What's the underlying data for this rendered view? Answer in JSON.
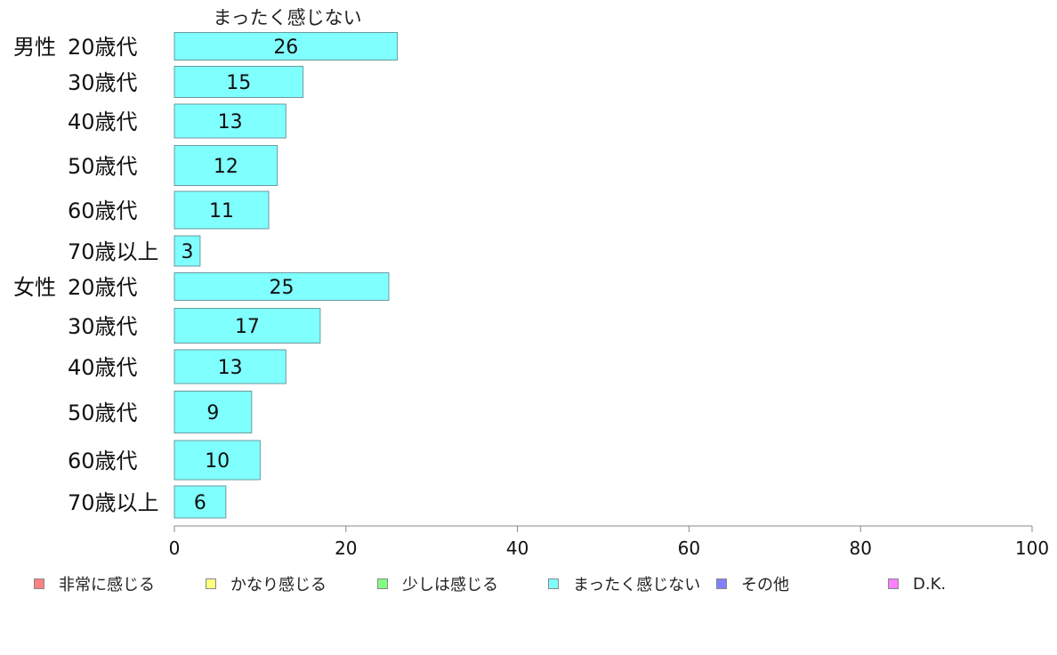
{
  "chart_data": {
    "type": "bar",
    "orientation": "horizontal",
    "column_title": "まったく感じない",
    "groups": [
      {
        "label": "男性",
        "start_index": 0
      },
      {
        "label": "女性",
        "start_index": 6
      }
    ],
    "categories": [
      "20歳代",
      "30歳代",
      "40歳代",
      "50歳代",
      "60歳代",
      "70歳以上",
      "20歳代",
      "30歳代",
      "40歳代",
      "50歳代",
      "60歳代",
      "70歳以上"
    ],
    "series": [
      {
        "name": "まったく感じない",
        "color": "#80ffff",
        "values": [
          26,
          15,
          13,
          12,
          11,
          3,
          25,
          17,
          13,
          9,
          10,
          6
        ]
      }
    ],
    "xlim": [
      0,
      100
    ],
    "xticks": [
      0,
      20,
      40,
      60,
      80,
      100
    ],
    "grid": false,
    "legend_position": "bottom",
    "legend": [
      {
        "label": "非常に感じる",
        "color": "#ff8080"
      },
      {
        "label": "かなり感じる",
        "color": "#ffff80"
      },
      {
        "label": "少しは感じる",
        "color": "#80ff80"
      },
      {
        "label": "まったく感じない",
        "color": "#80ffff"
      },
      {
        "label": "その他",
        "color": "#8080ff"
      },
      {
        "label": "D.K.",
        "color": "#ff80ff"
      }
    ]
  }
}
